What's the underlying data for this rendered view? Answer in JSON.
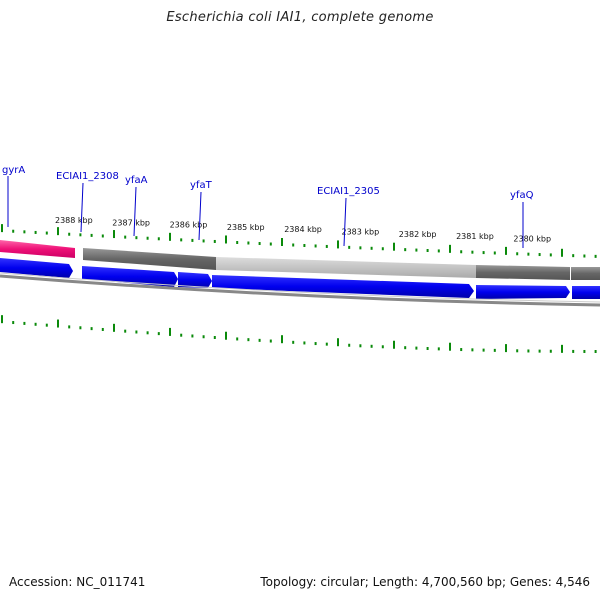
{
  "title": "Escherichia coli IAI1, complete genome",
  "footer": {
    "accession": "Accession: NC_011741",
    "stats": "Topology: circular; Length: 4,700,560 bp; Genes: 4,546"
  },
  "gene_labels": [
    {
      "name": "gyrA"
    },
    {
      "name": "ECIAI1_2308"
    },
    {
      "name": "yfaA"
    },
    {
      "name": "yfaT"
    },
    {
      "name": "ECIAI1_2305"
    },
    {
      "name": "yfaQ"
    }
  ],
  "kbp_labels": [
    "2388 kbp",
    "2387 kbp",
    "2386 kbp",
    "2385 kbp",
    "2384 kbp",
    "2383 kbp",
    "2382 kbp",
    "2381 kbp",
    "2380 kbp"
  ],
  "colors": {
    "pink_feature": "#ee1177",
    "blue_feature": "#0000ee",
    "dark_gray_feature": "#666666",
    "light_gray_feature": "#bbbbbb",
    "backbone": "#888888",
    "tick": "#0a8a0a",
    "label": "#0000cc"
  }
}
